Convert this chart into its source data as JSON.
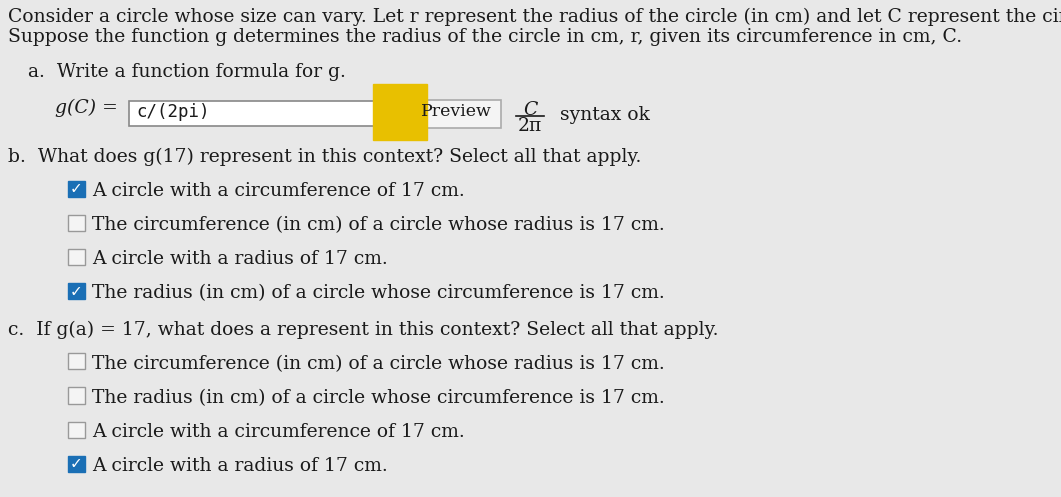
{
  "background_color": "#e8e8e8",
  "intro_line1": "Consider a circle whose size can vary. Let r represent the radius of the circle (in cm) and let C represent the circumference of the circle (in cm).",
  "intro_line2": "Suppose the function g determines the radius of the circle in cm, r, given its circumference in cm, C.",
  "part_a_label": "a.  Write a function formula for g.",
  "part_a_input_text": "c/(2pi)",
  "part_a_syntax": "syntax ok",
  "part_b_label": "b.  What does g(17) represent in this context? Select all that apply.",
  "part_b_options": [
    {
      "text": "A circle with a circumference of 17 cm.",
      "checked": true
    },
    {
      "text": "The circumference (in cm) of a circle whose radius is 17 cm.",
      "checked": false
    },
    {
      "text": "A circle with a radius of 17 cm.",
      "checked": false
    },
    {
      "text": "The radius (in cm) of a circle whose circumference is 17 cm.",
      "checked": true
    }
  ],
  "part_c_label": "c.  If g(a) = 17, what does a represent in this context? Select all that apply.",
  "part_c_options": [
    {
      "text": "The circumference (in cm) of a circle whose radius is 17 cm.",
      "checked": false
    },
    {
      "text": "The radius (in cm) of a circle whose circumference is 17 cm.",
      "checked": false
    },
    {
      "text": "A circle with a circumference of 17 cm.",
      "checked": false
    },
    {
      "text": "A circle with a radius of 17 cm.",
      "checked": true
    }
  ],
  "check_color": "#1a6fb5",
  "text_color": "#1a1a1a",
  "arrow_color": "#e8c000"
}
